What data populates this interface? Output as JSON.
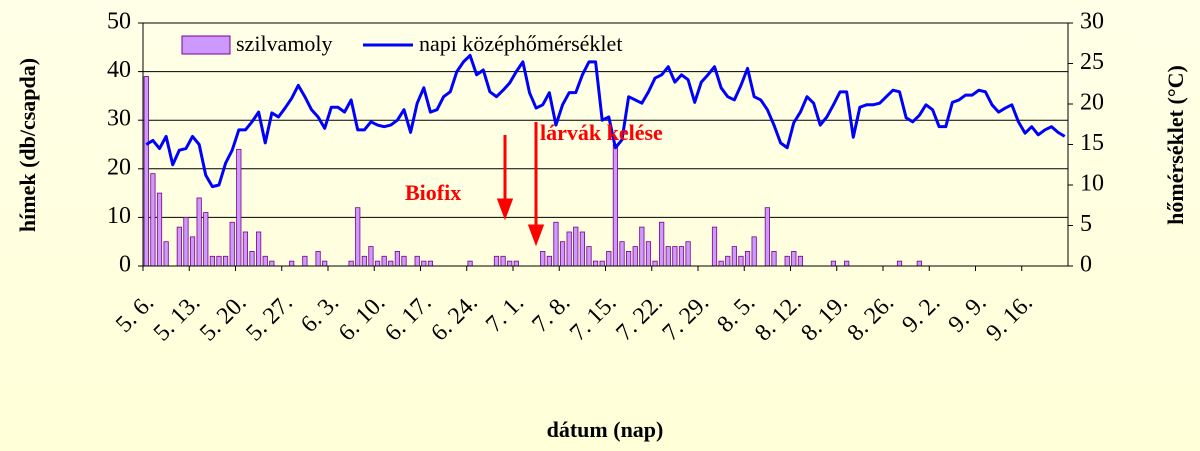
{
  "chart_data": {
    "type": "combo",
    "xlabel": "dátum (nap)",
    "ylabel": "hímek (db/csapda)",
    "y2label": "hőmérséklet (°C)",
    "categories": [
      "5. 6.",
      null,
      null,
      null,
      null,
      null,
      null,
      "5. 13.",
      null,
      null,
      null,
      null,
      null,
      null,
      "5. 20.",
      null,
      null,
      null,
      null,
      null,
      null,
      "5. 27.",
      null,
      null,
      null,
      null,
      null,
      null,
      "6. 3.",
      null,
      null,
      null,
      null,
      null,
      null,
      "6. 10.",
      null,
      null,
      null,
      null,
      null,
      null,
      "6. 17.",
      null,
      null,
      null,
      null,
      null,
      null,
      "6. 24.",
      null,
      null,
      null,
      null,
      null,
      null,
      "7. 1.",
      null,
      null,
      null,
      null,
      null,
      null,
      "7. 8.",
      null,
      null,
      null,
      null,
      null,
      null,
      "7. 15.",
      null,
      null,
      null,
      null,
      null,
      null,
      "7. 22.",
      null,
      null,
      null,
      null,
      null,
      null,
      "7. 29.",
      null,
      null,
      null,
      null,
      null,
      null,
      "8. 5.",
      null,
      null,
      null,
      null,
      null,
      null,
      "8. 12.",
      null,
      null,
      null,
      null,
      null,
      null,
      "8. 19.",
      null,
      null,
      null,
      null,
      null,
      null,
      "8. 26.",
      null,
      null,
      null,
      null,
      null,
      null,
      "9. 2.",
      null,
      null,
      null,
      null,
      null,
      null,
      "9. 9.",
      null,
      null,
      null,
      null,
      null,
      null,
      "9. 16.",
      null,
      null,
      null,
      null,
      null,
      null
    ],
    "series": [
      {
        "name": "szilvamoly",
        "type": "bar",
        "color": "#cc99ff",
        "values": [
          39,
          19,
          15,
          5,
          0,
          8,
          10,
          6,
          14,
          11,
          2,
          2,
          2,
          9,
          24,
          7,
          3,
          7,
          2,
          1,
          0,
          0,
          1,
          0,
          2,
          0,
          3,
          1,
          0,
          0,
          0,
          1,
          12,
          2,
          4,
          1,
          2,
          1,
          3,
          2,
          0,
          2,
          1,
          1,
          0,
          0,
          0,
          0,
          0,
          1,
          0,
          0,
          0,
          2,
          2,
          1,
          1,
          0,
          0,
          0,
          3,
          2,
          9,
          5,
          7,
          8,
          7,
          4,
          1,
          1,
          3,
          25,
          5,
          3,
          4,
          8,
          5,
          1,
          9,
          4,
          4,
          4,
          5,
          0,
          0,
          0,
          8,
          1,
          2,
          4,
          2,
          3,
          6,
          0,
          12,
          3,
          0,
          2,
          3,
          2,
          0,
          0,
          0,
          0,
          1,
          0,
          1,
          0,
          0,
          0,
          0,
          0,
          0,
          0,
          1,
          0,
          0,
          1,
          0,
          0,
          0,
          0,
          0,
          0,
          0,
          0,
          0,
          0,
          0,
          0,
          0,
          0,
          0,
          0,
          0,
          0,
          0,
          0,
          0,
          0
        ]
      },
      {
        "name": "napi középhőmérséklet",
        "type": "line",
        "axis": "y2",
        "color": "#0000ff",
        "values": [
          15,
          15.5,
          14.5,
          16,
          12.5,
          14.3,
          14.5,
          16,
          15,
          11.2,
          9.8,
          10,
          12.7,
          14.3,
          16.8,
          16.8,
          17.8,
          19,
          15.2,
          18.9,
          18.4,
          19.5,
          20.7,
          22.3,
          20.9,
          19.3,
          18.4,
          17,
          19.6,
          19.6,
          19,
          20.5,
          16.8,
          16.8,
          17.8,
          17.4,
          17.2,
          17.4,
          18,
          19.3,
          16.5,
          20.1,
          22,
          19,
          19.3,
          20.9,
          21.5,
          24,
          25.2,
          26,
          23.6,
          24.2,
          21.5,
          20.9,
          21.7,
          22.6,
          24,
          25.2,
          21.4,
          19.5,
          19.9,
          21.4,
          17.4,
          19.9,
          21.4,
          21.4,
          23.6,
          25.2,
          25.2,
          18,
          18.4,
          14.6,
          15.6,
          20.9,
          20.5,
          20.1,
          21.5,
          23.2,
          23.6,
          24.6,
          22.7,
          23.6,
          23,
          20.2,
          22.7,
          23.6,
          24.6,
          22,
          20.9,
          20.5,
          22.3,
          24.4,
          20.9,
          20.5,
          19.3,
          17.4,
          15.2,
          14.6,
          17.7,
          19,
          20.9,
          20.1,
          17.4,
          18.4,
          19.9,
          21.5,
          21.5,
          15.9,
          19.6,
          19.9,
          19.9,
          20.1,
          20.9,
          21.7,
          21.5,
          18.3,
          17.8,
          18.6,
          19.9,
          19.3,
          17.2,
          17.2,
          20.2,
          20.5,
          21.1,
          21.1,
          21.7,
          21.5,
          19.9,
          19,
          19.5,
          19.9,
          17.8,
          16.4,
          17.2,
          16.2,
          16.8,
          17.2,
          16.5,
          16
        ]
      }
    ],
    "ylim": [
      0,
      50
    ],
    "yticks": [
      0,
      10,
      20,
      30,
      40,
      50
    ],
    "y2lim": [
      0,
      30
    ],
    "y2ticks": [
      0,
      5,
      10,
      15,
      20,
      25,
      30
    ],
    "grid": true,
    "annotations": [
      {
        "text": "Biofix",
        "color": "#ff0000"
      },
      {
        "text": "lárvák kelése",
        "color": "#ff0000"
      }
    ]
  }
}
